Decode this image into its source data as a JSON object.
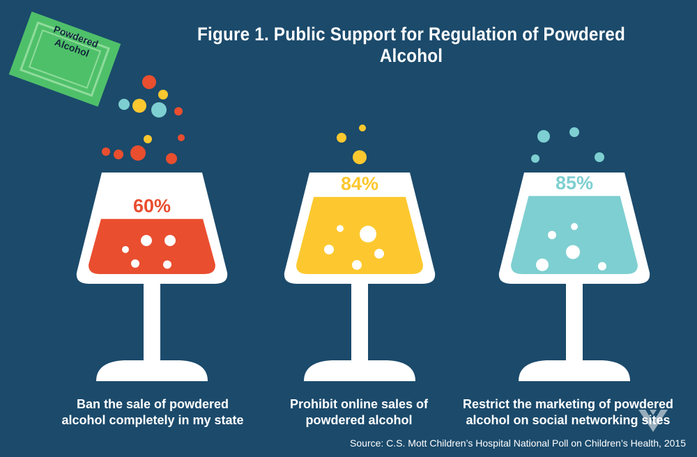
{
  "title": "Figure 1. Public Support for Regulation of Powdered Alcohol",
  "packet": {
    "line1": "Powdered",
    "line2": "Alcohol"
  },
  "source": "Source: C.S. Mott Children’s Hospital National Poll on Children’s Health, 2015",
  "colors": {
    "background": "#1b4a6b",
    "glass": "#ffffff",
    "red": "#e94e2f",
    "yellow": "#fdc82f",
    "teal": "#7ecfd1",
    "packet_green": "#4fc06a"
  },
  "chart_data": {
    "type": "bar",
    "title": "Figure 1. Public Support for Regulation of Powdered Alcohol",
    "categories": [
      "Ban the sale of powdered alcohol completely in my state",
      "Prohibit online sales of powdered alcohol",
      "Restrict the marketing of powdered alcohol on social networking sites"
    ],
    "values": [
      60,
      84,
      85
    ],
    "labels": [
      "60%",
      "84%",
      "85%"
    ],
    "series_colors": [
      "#e94e2f",
      "#fdc82f",
      "#7ecfd1"
    ],
    "ylim": [
      0,
      100
    ],
    "xlabel": "",
    "ylabel": ""
  },
  "captions": [
    {
      "line1": "Ban the sale of powdered",
      "line2": "alcohol completely in my state"
    },
    {
      "line1": "Prohibit online sales of",
      "line2": "powdered alcohol"
    },
    {
      "line1": "Restrict the marketing of powdered",
      "line2": "alcohol on social networking sites"
    }
  ]
}
